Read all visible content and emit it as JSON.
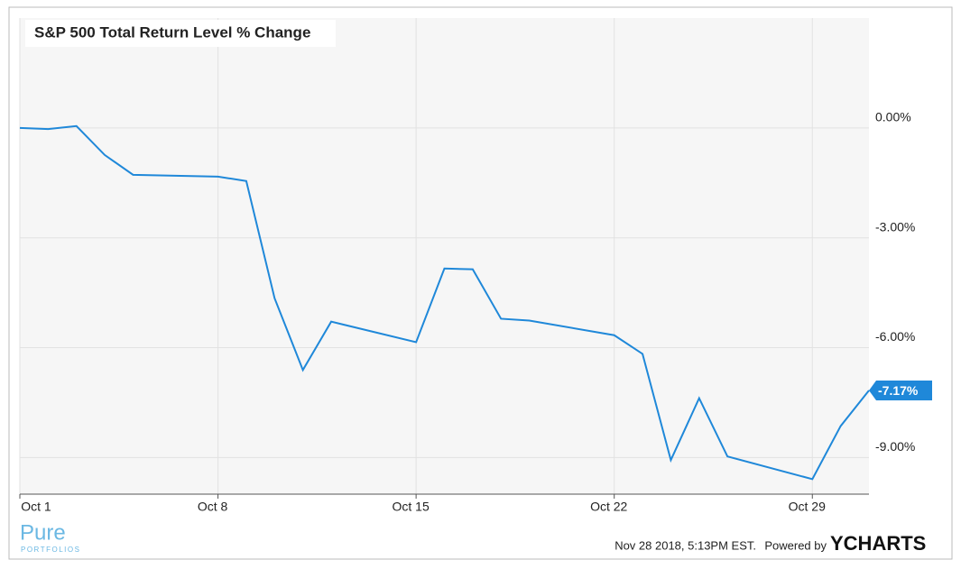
{
  "chart_data": {
    "type": "line",
    "title": "S&P 500 Total Return Level % Change",
    "x": [
      1,
      2,
      3,
      4,
      5,
      8,
      9,
      10,
      11,
      12,
      15,
      16,
      17,
      18,
      19,
      22,
      23,
      24,
      25,
      26,
      29,
      30,
      31
    ],
    "series": [
      {
        "name": "S&P 500 Total Return Level % Change",
        "color": "#1f88d9",
        "values": [
          0,
          -0.03,
          0.05,
          -0.74,
          -1.28,
          -1.33,
          -1.45,
          -4.65,
          -6.61,
          -5.29,
          -5.85,
          -3.84,
          -3.86,
          -5.21,
          -5.26,
          -5.66,
          -6.17,
          -9.07,
          -7.38,
          -8.97,
          -9.59,
          -8.14,
          -7.17
        ],
        "value_labels": [
          null,
          null,
          null,
          null,
          null,
          null,
          null,
          null,
          null,
          null,
          null,
          null,
          null,
          null,
          null,
          null,
          null,
          null,
          null,
          null,
          null,
          null,
          "-7.17%"
        ]
      }
    ],
    "xlim": [
      1,
      31
    ],
    "xticks": [
      {
        "value": 1,
        "label": "Oct 1"
      },
      {
        "value": 8,
        "label": "Oct 8"
      },
      {
        "value": 15,
        "label": "Oct 15"
      },
      {
        "value": 22,
        "label": "Oct 22"
      },
      {
        "value": 29,
        "label": "Oct 29"
      }
    ],
    "ylim": [
      -10.0,
      3.0
    ],
    "yticks": [
      {
        "value": 0,
        "label": "0.00%"
      },
      {
        "value": -3,
        "label": "-3.00%"
      },
      {
        "value": -6,
        "label": "-6.00%"
      },
      {
        "value": -9,
        "label": "-9.00%"
      }
    ],
    "grid": true,
    "footer": {
      "logo": "Pure",
      "logo_sub": "PORTFOLIOS",
      "timestamp": "Nov 28 2018, 5:13PM EST.",
      "powered_by": "Powered by",
      "brand": "YCHARTS"
    }
  }
}
